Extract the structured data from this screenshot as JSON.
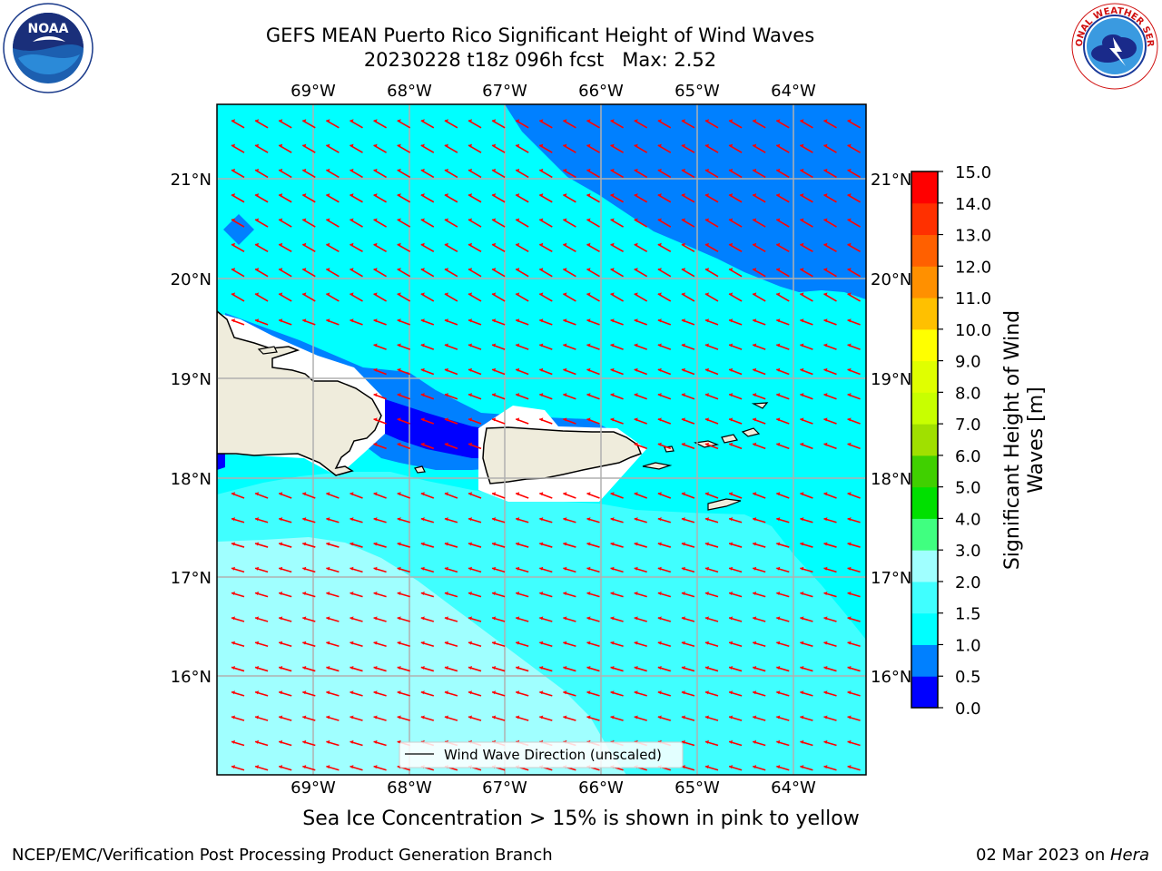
{
  "header": {
    "title_line1": "GEFS MEAN Puerto Rico Significant Height of Wind Waves",
    "title_line2": "20230228 t18z 096h fcst   Max: 2.52"
  },
  "logos": {
    "left": {
      "name": "noaa-logo",
      "text": "NOAA",
      "ring_text": "NATIONAL OCEANIC AND ATMOSPHERIC ADMINISTRATION · U.S. DEPARTMENT OF COMMERCE"
    },
    "right": {
      "name": "nws-logo",
      "ring_text": "NATIONAL WEATHER SERVICE"
    }
  },
  "map": {
    "lon_labels": [
      "69°W",
      "68°W",
      "67°W",
      "66°W",
      "65°W",
      "64°W"
    ],
    "lat_labels": [
      "21°N",
      "20°N",
      "19°N",
      "18°N",
      "17°N",
      "16°N"
    ],
    "legend_label": "Wind Wave Direction (unscaled)",
    "arrow_color": "#ff0000",
    "land_color": "#efecdc"
  },
  "colorbar": {
    "label": "Significant Height of Wind Waves [m]",
    "label_line1": "Significant Height of Wind",
    "label_line2": "Waves [m]",
    "ticks": [
      "0.0",
      "0.5",
      "1.0",
      "1.5",
      "2.0",
      "3.0",
      "4.0",
      "5.0",
      "6.0",
      "7.0",
      "8.0",
      "9.0",
      "10.0",
      "11.0",
      "12.0",
      "13.0",
      "14.0",
      "15.0"
    ],
    "colors": [
      "#0000ff",
      "#0080ff",
      "#00ffff",
      "#40ffff",
      "#a0ffff",
      "#40ff80",
      "#00e000",
      "#40d000",
      "#a0e000",
      "#c8ff00",
      "#e0ff00",
      "#ffff00",
      "#ffc000",
      "#ff9000",
      "#ff6000",
      "#ff3000",
      "#ff0000"
    ]
  },
  "subtitle": "Sea Ice Concentration > 15% is shown in pink to yellow",
  "footer": {
    "left": "NCEP/EMC/Verification Post Processing Product Generation Branch",
    "right_prefix": "02 Mar 2023 on ",
    "right_machine": "Hera"
  }
}
